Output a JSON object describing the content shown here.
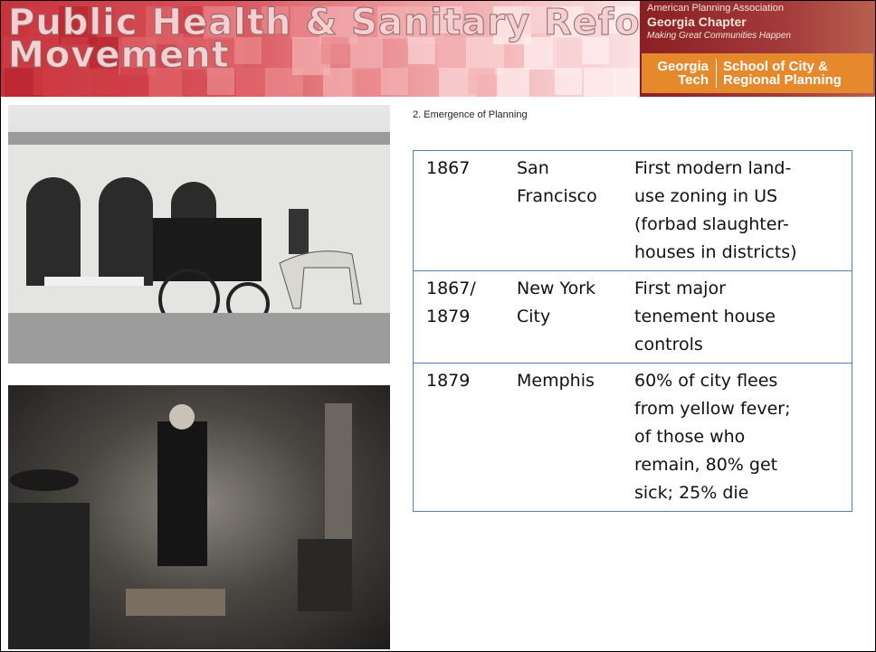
{
  "header": {
    "title": [
      "Public Health & Sanitary Reform",
      "Movement"
    ]
  },
  "logos": {
    "apa": {
      "organization": "American Planning Association",
      "chapter": "Georgia Chapter",
      "tagline": "Making Great Communities Happen"
    },
    "gt": {
      "name": [
        "Georgia",
        "Tech"
      ],
      "school": [
        "School of City &",
        "Regional Planning"
      ]
    }
  },
  "section": "2. Emergence of Planning",
  "table": {
    "rows": [
      [
        [
          "1867"
        ],
        [
          "San",
          "Francisco"
        ],
        [
          "First modern land-",
          "use zoning in US",
          "(forbad slaughter-",
          "houses in districts)"
        ]
      ],
      [
        [
          "1867/",
          "1879"
        ],
        [
          "New York",
          "City"
        ],
        [
          "First major",
          "tenement house",
          "controls"
        ]
      ],
      [
        [
          "1879"
        ],
        [
          "Memphis"
        ],
        [
          "60% of city flees",
          "from yellow fever;",
          "of those who",
          "remain, 80% get",
          "sick; 25% die"
        ]
      ]
    ]
  }
}
